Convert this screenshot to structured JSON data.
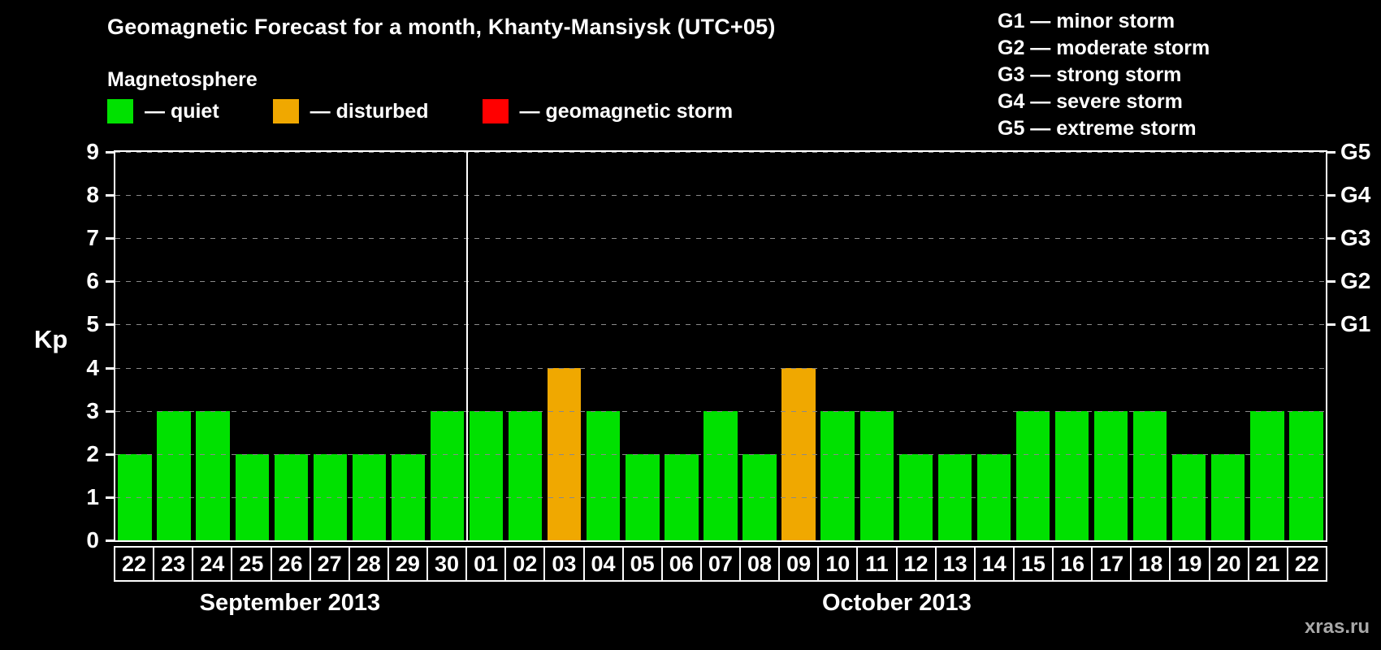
{
  "title": "Geomagnetic Forecast for a month, Khanty-Mansiysk (UTC+05)",
  "legend": {
    "heading": "Magnetosphere",
    "items": [
      {
        "key": "quiet",
        "label": "— quiet",
        "color": "#00e100"
      },
      {
        "key": "disturbed",
        "label": "— disturbed",
        "color": "#f0a800"
      },
      {
        "key": "storm",
        "label": "— geomagnetic storm",
        "color": "#ff0000"
      }
    ]
  },
  "g_legend": [
    "G1 — minor storm",
    "G2 — moderate storm",
    "G3 — strong storm",
    "G4 — severe storm",
    "G5 — extreme storm"
  ],
  "chart_data": {
    "type": "bar",
    "title": "Geomagnetic Forecast for a month, Khanty-Mansiysk (UTC+05)",
    "xlabel": "",
    "ylabel": "Kp",
    "ylim": [
      0,
      9
    ],
    "yticks": [
      0,
      1,
      2,
      3,
      4,
      5,
      6,
      7,
      8,
      9
    ],
    "grid": "dashed horizontal at each Kp level",
    "right_ticks": [
      {
        "value": 5,
        "label": "G1"
      },
      {
        "value": 6,
        "label": "G2"
      },
      {
        "value": 7,
        "label": "G3"
      },
      {
        "value": 8,
        "label": "G4"
      },
      {
        "value": 9,
        "label": "G5"
      }
    ],
    "months": [
      {
        "label": "September 2013",
        "days": 9
      },
      {
        "label": "October 2013",
        "days": 22
      }
    ],
    "categories": [
      "22",
      "23",
      "24",
      "25",
      "26",
      "27",
      "28",
      "29",
      "30",
      "01",
      "02",
      "03",
      "04",
      "05",
      "06",
      "07",
      "08",
      "09",
      "10",
      "11",
      "12",
      "13",
      "14",
      "15",
      "16",
      "17",
      "18",
      "19",
      "20",
      "21",
      "22"
    ],
    "values": [
      2,
      3,
      3,
      2,
      2,
      2,
      2,
      2,
      3,
      3,
      3,
      4,
      3,
      2,
      2,
      3,
      2,
      4,
      3,
      3,
      2,
      2,
      2,
      3,
      3,
      3,
      3,
      2,
      2,
      3,
      3
    ],
    "status": [
      "quiet",
      "quiet",
      "quiet",
      "quiet",
      "quiet",
      "quiet",
      "quiet",
      "quiet",
      "quiet",
      "quiet",
      "quiet",
      "disturbed",
      "quiet",
      "quiet",
      "quiet",
      "quiet",
      "quiet",
      "disturbed",
      "quiet",
      "quiet",
      "quiet",
      "quiet",
      "quiet",
      "quiet",
      "quiet",
      "quiet",
      "quiet",
      "quiet",
      "quiet",
      "quiet",
      "quiet"
    ],
    "colors": {
      "quiet": "#00e100",
      "disturbed": "#f0a800",
      "storm": "#ff0000"
    }
  },
  "watermark": "xras.ru"
}
